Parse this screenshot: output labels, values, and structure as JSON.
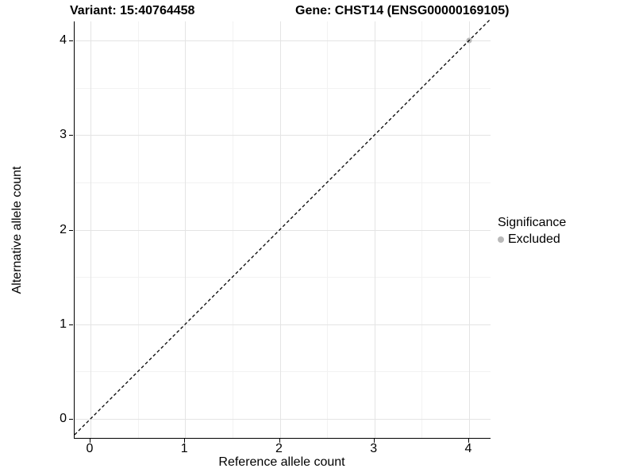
{
  "titles": {
    "variant": "Variant: 15:40764458",
    "gene": "Gene: CHST14 (ENSG00000169105)"
  },
  "chart_data": {
    "type": "scatter",
    "title_left": "Variant: 15:40764458",
    "title_right": "Gene: CHST14 (ENSG00000169105)",
    "xlabel": "Reference allele count",
    "ylabel": "Alternative allele count",
    "x_ticks": [
      0,
      1,
      2,
      3,
      4
    ],
    "y_ticks": [
      0,
      1,
      2,
      3,
      4
    ],
    "xlim": [
      -0.17,
      4.23
    ],
    "ylim": [
      -0.2,
      4.2
    ],
    "grid": "major and minor gridlines on, white background",
    "legend_position": "right",
    "series": [
      {
        "name": "Excluded",
        "points": [
          {
            "x": 4,
            "y": 4
          }
        ],
        "color": "#b9b9b9"
      }
    ],
    "reference_line": {
      "description": "identity line y = x",
      "style": "dashed",
      "color": "#000000"
    },
    "legend": {
      "title": "Significance",
      "entries": [
        {
          "label": "Excluded",
          "color": "#b9b9b9"
        }
      ]
    },
    "colors": {
      "background": "#ffffff",
      "grid_major": "#e4e4e4",
      "grid_minor": "#f2f2f2",
      "axis_line": "#000000",
      "text": "#000000",
      "point_excluded": "#b9b9b9"
    }
  }
}
